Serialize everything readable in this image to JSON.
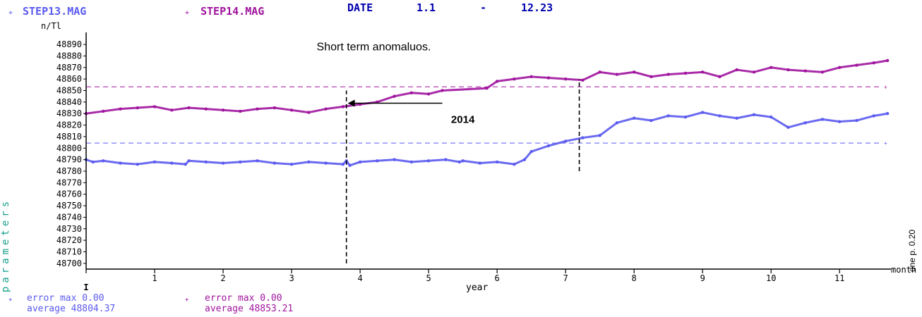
{
  "header": {
    "legend_1": "STEP13.MAG",
    "legend_2": "STEP14.MAG",
    "date_label": "DATE",
    "date_start": "1.1",
    "date_dash": "-",
    "date_end": "12.23"
  },
  "footer": {
    "s1_error": "error max 0.00",
    "s1_average": "average 48804.37",
    "s2_error": "error max 0.00",
    "s2_average": "average 48853.21"
  },
  "chart_data": {
    "type": "line",
    "title": "DATE 1.1 - 12.23",
    "xlabel": "year",
    "ylabel": "parameters",
    "yunit": "n/Tl",
    "x_right_label": "month",
    "side_note": "one p. 0.20",
    "xlim": [
      0,
      11.75
    ],
    "ylim": [
      48695,
      48898
    ],
    "xticks": [
      1,
      2,
      3,
      4,
      5,
      6,
      7,
      8,
      9,
      10,
      11
    ],
    "yticks": [
      48700,
      48710,
      48720,
      48730,
      48740,
      48750,
      48760,
      48770,
      48780,
      48790,
      48800,
      48810,
      48820,
      48830,
      48840,
      48850,
      48860,
      48870,
      48880,
      48890
    ],
    "grid": false,
    "legend_placement": "top-left",
    "colors": {
      "STEP13.MAG": "#5a5af0",
      "STEP14.MAG": "#a0149e"
    },
    "series": [
      {
        "name": "STEP13.MAG",
        "average": 48804.37,
        "x": [
          0,
          0.1,
          0.25,
          0.5,
          0.75,
          1,
          1.25,
          1.45,
          1.5,
          1.75,
          2,
          2.25,
          2.5,
          2.75,
          3,
          3.25,
          3.5,
          3.75,
          3.8,
          3.85,
          4,
          4.25,
          4.5,
          4.75,
          5,
          5.25,
          5.45,
          5.5,
          5.75,
          6,
          6.25,
          6.4,
          6.5,
          6.75,
          7,
          7.25,
          7.5,
          7.75,
          8,
          8.25,
          8.5,
          8.75,
          9,
          9.25,
          9.5,
          9.75,
          10,
          10.25,
          10.5,
          10.75,
          11,
          11.25,
          11.5,
          11.7
        ],
        "y": [
          48790,
          48788,
          48789,
          48787,
          48786,
          48788,
          48787,
          48786,
          48789,
          48788,
          48787,
          48788,
          48789,
          48787,
          48786,
          48788,
          48787,
          48786,
          48789,
          48785,
          48788,
          48789,
          48790,
          48788,
          48789,
          48790,
          48788,
          48789,
          48787,
          48788,
          48786,
          48790,
          48797,
          48802,
          48806,
          48809,
          48811,
          48822,
          48826,
          48824,
          48828,
          48827,
          48831,
          48828,
          48826,
          48829,
          48827,
          48818,
          48822,
          48825,
          48823,
          48824,
          48828,
          48830
        ]
      },
      {
        "name": "STEP14.MAG",
        "average": 48853.21,
        "x": [
          0,
          0.25,
          0.5,
          0.75,
          1,
          1.25,
          1.5,
          1.75,
          2,
          2.25,
          2.5,
          2.75,
          3,
          3.25,
          3.5,
          3.75,
          4,
          4.25,
          4.5,
          4.75,
          5,
          5.2,
          5.85,
          6,
          6.25,
          6.5,
          6.75,
          7,
          7.25,
          7.5,
          7.75,
          8,
          8.25,
          8.5,
          8.75,
          9,
          9.25,
          9.5,
          9.75,
          10,
          10.25,
          10.5,
          10.75,
          11,
          11.25,
          11.5,
          11.7
        ],
        "y": [
          48830,
          48832,
          48834,
          48835,
          48836,
          48833,
          48835,
          48834,
          48833,
          48832,
          48834,
          48835,
          48833,
          48831,
          48834,
          48836,
          48838,
          48840,
          48845,
          48848,
          48847,
          48850,
          48852,
          48858,
          48860,
          48862,
          48861,
          48860,
          48859,
          48866,
          48864,
          48866,
          48862,
          48864,
          48865,
          48866,
          48862,
          48868,
          48866,
          48870,
          48868,
          48867,
          48866,
          48870,
          48872,
          48874,
          48876
        ]
      }
    ],
    "annotations": [
      {
        "text": "Short term anomaluos.",
        "x": 4.2,
        "y": 48885
      },
      {
        "text": "2014",
        "x": 5.5,
        "y": 48822
      },
      {
        "type": "dashed-vertical",
        "x": 3.8,
        "y1": 48700,
        "y2": 48850
      },
      {
        "type": "dashed-vertical",
        "x": 7.2,
        "y1": 48780,
        "y2": 48860
      },
      {
        "type": "arrow",
        "from_x": 5.2,
        "to_x": 3.82,
        "y": 48839
      }
    ]
  }
}
